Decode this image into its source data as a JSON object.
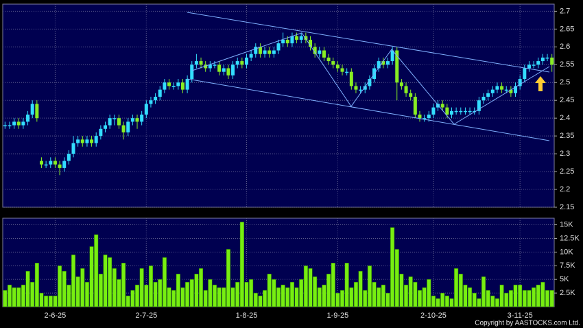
{
  "chart_data": {
    "type": "candlestick",
    "copyright": "Copyright by AASTOCKS.com Ltd.",
    "categories": [
      null,
      null,
      null,
      null,
      null,
      null,
      null,
      null,
      null,
      null,
      null,
      "2-6-25",
      null,
      null,
      null,
      null,
      null,
      null,
      null,
      null,
      null,
      null,
      null,
      null,
      null,
      null,
      null,
      null,
      null,
      null,
      null,
      "2-7-25",
      null,
      null,
      null,
      null,
      null,
      null,
      null,
      null,
      null,
      null,
      null,
      null,
      null,
      null,
      null,
      null,
      null,
      null,
      null,
      null,
      null,
      "1-8-25",
      null,
      null,
      null,
      null,
      null,
      null,
      null,
      null,
      null,
      null,
      null,
      null,
      null,
      null,
      null,
      null,
      null,
      null,
      null,
      "1-9-25",
      null,
      null,
      null,
      null,
      null,
      null,
      null,
      null,
      null,
      null,
      null,
      null,
      null,
      null,
      null,
      null,
      null,
      null,
      null,
      null,
      "2-10-25",
      null,
      null,
      null,
      null,
      null,
      null,
      null,
      null,
      null,
      null,
      null,
      null,
      null,
      null,
      null,
      null,
      null,
      null,
      "3-11-25",
      null,
      null,
      null,
      null,
      null,
      null,
      null
    ],
    "open": [
      2.38,
      2.38,
      2.38,
      2.39,
      2.38,
      2.39,
      2.41,
      2.44,
      2.28,
      2.27,
      2.27,
      2.28,
      2.27,
      2.26,
      2.28,
      2.3,
      2.33,
      2.34,
      2.33,
      2.34,
      2.33,
      2.35,
      2.37,
      2.38,
      2.4,
      2.4,
      2.38,
      2.36,
      2.39,
      2.4,
      2.39,
      2.41,
      2.44,
      2.45,
      2.46,
      2.48,
      2.5,
      2.49,
      2.49,
      2.5,
      2.48,
      2.51,
      2.55,
      2.56,
      2.55,
      2.54,
      2.55,
      2.55,
      2.53,
      2.54,
      2.52,
      2.55,
      2.56,
      2.55,
      2.57,
      2.58,
      2.6,
      2.58,
      2.59,
      2.58,
      2.59,
      2.61,
      2.62,
      2.61,
      2.63,
      2.62,
      2.63,
      2.62,
      2.6,
      2.58,
      2.59,
      2.57,
      2.56,
      2.55,
      2.54,
      2.53,
      2.53,
      2.49,
      2.48,
      2.48,
      2.49,
      2.51,
      2.54,
      2.56,
      2.55,
      2.56,
      2.59,
      2.5,
      2.49,
      2.47,
      2.46,
      2.41,
      2.4,
      2.4,
      2.41,
      2.43,
      2.44,
      2.43,
      2.41,
      2.42,
      2.42,
      2.42,
      2.42,
      2.42,
      2.42,
      2.45,
      2.46,
      2.47,
      2.48,
      2.49,
      2.48,
      2.48,
      2.47,
      2.49,
      2.51,
      2.54,
      2.55,
      2.55,
      2.56,
      2.57,
      2.57
    ],
    "high": [
      2.39,
      2.39,
      2.4,
      2.4,
      2.4,
      2.42,
      2.45,
      2.45,
      2.29,
      2.28,
      2.29,
      2.29,
      2.28,
      2.29,
      2.31,
      2.35,
      2.35,
      2.35,
      2.35,
      2.35,
      2.36,
      2.38,
      2.39,
      2.41,
      2.41,
      2.41,
      2.39,
      2.4,
      2.41,
      2.41,
      2.42,
      2.45,
      2.46,
      2.47,
      2.49,
      2.51,
      2.51,
      2.5,
      2.51,
      2.51,
      2.52,
      2.56,
      2.58,
      2.57,
      2.56,
      2.56,
      2.56,
      2.56,
      2.55,
      2.55,
      2.56,
      2.57,
      2.57,
      2.58,
      2.59,
      2.61,
      2.61,
      2.6,
      2.6,
      2.6,
      2.62,
      2.64,
      2.63,
      2.64,
      2.64,
      2.64,
      2.64,
      2.63,
      2.61,
      2.6,
      2.6,
      2.58,
      2.57,
      2.56,
      2.55,
      2.54,
      2.54,
      2.5,
      2.49,
      2.5,
      2.52,
      2.55,
      2.57,
      2.57,
      2.57,
      2.6,
      2.6,
      2.51,
      2.5,
      2.48,
      2.47,
      2.42,
      2.41,
      2.42,
      2.44,
      2.45,
      2.45,
      2.44,
      2.43,
      2.43,
      2.43,
      2.43,
      2.43,
      2.43,
      2.46,
      2.47,
      2.48,
      2.49,
      2.5,
      2.5,
      2.49,
      2.49,
      2.5,
      2.52,
      2.55,
      2.56,
      2.56,
      2.57,
      2.58,
      2.58,
      2.58
    ],
    "low": [
      2.37,
      2.37,
      2.37,
      2.37,
      2.37,
      2.38,
      2.4,
      2.39,
      2.26,
      2.26,
      2.26,
      2.26,
      2.24,
      2.25,
      2.27,
      2.29,
      2.32,
      2.32,
      2.32,
      2.32,
      2.32,
      2.34,
      2.36,
      2.37,
      2.38,
      2.37,
      2.34,
      2.35,
      2.38,
      2.37,
      2.38,
      2.4,
      2.43,
      2.44,
      2.45,
      2.47,
      2.48,
      2.48,
      2.48,
      2.47,
      2.47,
      2.5,
      2.54,
      2.54,
      2.53,
      2.53,
      2.54,
      2.52,
      2.52,
      2.51,
      2.51,
      2.54,
      2.54,
      2.54,
      2.56,
      2.57,
      2.57,
      2.57,
      2.57,
      2.57,
      2.58,
      2.6,
      2.6,
      2.6,
      2.61,
      2.61,
      2.61,
      2.59,
      2.57,
      2.57,
      2.56,
      2.55,
      2.54,
      2.53,
      2.52,
      2.52,
      2.48,
      2.47,
      2.47,
      2.47,
      2.48,
      2.5,
      2.53,
      2.54,
      2.54,
      2.55,
      2.45,
      2.48,
      2.46,
      2.45,
      2.4,
      2.39,
      2.39,
      2.39,
      2.4,
      2.42,
      2.42,
      2.4,
      2.4,
      2.41,
      2.41,
      2.41,
      2.41,
      2.41,
      2.41,
      2.44,
      2.45,
      2.46,
      2.47,
      2.47,
      2.47,
      2.46,
      2.46,
      2.48,
      2.5,
      2.53,
      2.54,
      2.54,
      2.55,
      2.56,
      2.53
    ],
    "close": [
      2.38,
      2.38,
      2.39,
      2.38,
      2.39,
      2.41,
      2.44,
      2.4,
      2.27,
      2.27,
      2.28,
      2.27,
      2.26,
      2.28,
      2.3,
      2.33,
      2.34,
      2.33,
      2.34,
      2.33,
      2.35,
      2.37,
      2.38,
      2.4,
      2.4,
      2.38,
      2.36,
      2.39,
      2.4,
      2.39,
      2.41,
      2.44,
      2.45,
      2.46,
      2.48,
      2.5,
      2.49,
      2.49,
      2.5,
      2.48,
      2.51,
      2.55,
      2.56,
      2.55,
      2.54,
      2.55,
      2.55,
      2.53,
      2.54,
      2.52,
      2.55,
      2.56,
      2.55,
      2.57,
      2.58,
      2.6,
      2.58,
      2.59,
      2.58,
      2.59,
      2.61,
      2.62,
      2.61,
      2.63,
      2.62,
      2.63,
      2.62,
      2.6,
      2.58,
      2.59,
      2.57,
      2.56,
      2.55,
      2.54,
      2.53,
      2.53,
      2.49,
      2.48,
      2.48,
      2.49,
      2.51,
      2.54,
      2.56,
      2.55,
      2.56,
      2.59,
      2.5,
      2.49,
      2.47,
      2.46,
      2.41,
      2.4,
      2.4,
      2.41,
      2.43,
      2.44,
      2.43,
      2.41,
      2.42,
      2.42,
      2.42,
      2.42,
      2.42,
      2.42,
      2.45,
      2.46,
      2.47,
      2.48,
      2.49,
      2.48,
      2.48,
      2.47,
      2.49,
      2.51,
      2.54,
      2.55,
      2.55,
      2.56,
      2.57,
      2.57,
      2.55
    ],
    "volume": [
      3000,
      4000,
      3500,
      3500,
      4000,
      6500,
      4500,
      8000,
      2500,
      2000,
      2000,
      2000,
      7500,
      6500,
      4000,
      9500,
      5500,
      7000,
      4500,
      11000,
      13200,
      6000,
      9500,
      9000,
      7000,
      5000,
      8000,
      2000,
      3000,
      4000,
      7000,
      4000,
      7500,
      4500,
      5000,
      9000,
      3500,
      3000,
      6000,
      3500,
      4500,
      5000,
      6000,
      7000,
      3000,
      5000,
      4000,
      3500,
      3500,
      10500,
      3500,
      4500,
      15500,
      4500,
      5000,
      2500,
      2000,
      3000,
      6000,
      5000,
      3500,
      4000,
      3500,
      4500,
      3500,
      5000,
      7500,
      7000,
      5500,
      3500,
      4000,
      6000,
      8000,
      2500,
      3000,
      8000,
      3500,
      4500,
      6500,
      3000,
      7500,
      4500,
      3500,
      4000,
      2500,
      14500,
      10500,
      6000,
      4000,
      5500,
      4500,
      3000,
      3500,
      5000,
      2000,
      1500,
      2500,
      2000,
      1500,
      7000,
      6000,
      4000,
      3500,
      2500,
      1500,
      5500,
      3000,
      2000,
      1500,
      4000,
      2500,
      3000,
      4000,
      4000,
      3000,
      3000,
      3500,
      4000,
      4500,
      3000,
      3000
    ],
    "up_color": "#33ddff",
    "down_color": "#88ee22",
    "volume_color": "#77ee11",
    "ylim": [
      2.15,
      2.72
    ],
    "yticks": [
      2.15,
      2.2,
      2.25,
      2.3,
      2.35,
      2.4,
      2.45,
      2.5,
      2.55,
      2.6,
      2.65,
      2.7
    ],
    "y2lim": [
      0,
      16200
    ],
    "y2ticks": [
      {
        "value": 2500,
        "label": "2.5K"
      },
      {
        "value": 5000,
        "label": "5K"
      },
      {
        "value": 7500,
        "label": "7.5K"
      },
      {
        "value": 10000,
        "label": "10K"
      },
      {
        "value": 12500,
        "label": "12.5K"
      },
      {
        "value": 15000,
        "label": "15K"
      }
    ],
    "grid": true
  }
}
